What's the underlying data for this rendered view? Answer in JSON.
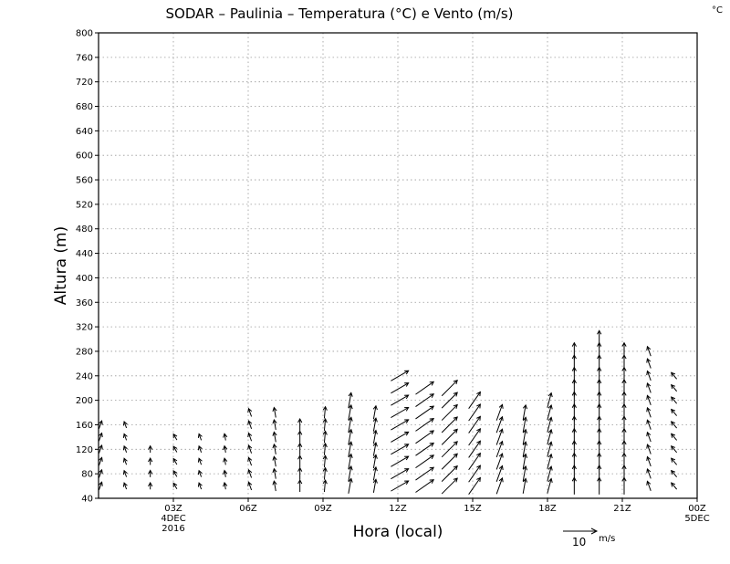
{
  "chart_data": {
    "type": "wind-profile",
    "title": "SODAR  –  Paulinia  –  Temperatura (°C) e Vento (m/s)",
    "corner_label": "°C",
    "xlabel": "Hora (local)",
    "ylabel": "Altura (m)",
    "ylim": [
      40,
      800
    ],
    "y_ticks": [
      40,
      80,
      120,
      160,
      200,
      240,
      280,
      320,
      360,
      400,
      440,
      480,
      520,
      560,
      600,
      640,
      680,
      720,
      760,
      800
    ],
    "xlim_hours": [
      0,
      24
    ],
    "x_ticks": [
      {
        "hour": 3,
        "label": "03Z",
        "sub1": "4DEC",
        "sub2": "2016"
      },
      {
        "hour": 6,
        "label": "06Z"
      },
      {
        "hour": 9,
        "label": "09Z"
      },
      {
        "hour": 12,
        "label": "12Z"
      },
      {
        "hour": 15,
        "label": "15Z"
      },
      {
        "hour": 18,
        "label": "18Z"
      },
      {
        "hour": 21,
        "label": "21Z"
      },
      {
        "hour": 24,
        "label": "00Z",
        "sub1": "5DEC"
      }
    ],
    "grid": true,
    "reference_vector": {
      "speed_value": "10",
      "unit": "m/s"
    },
    "wind_profiles": [
      {
        "hour": 0,
        "top": 160,
        "dir": 200,
        "speed": 2.5
      },
      {
        "hour": 1,
        "top": 160,
        "dir": 160,
        "speed": 2.0
      },
      {
        "hour": 2,
        "top": 120,
        "dir": 180,
        "speed": 2.0
      },
      {
        "hour": 3,
        "top": 140,
        "dir": 150,
        "speed": 2.0
      },
      {
        "hour": 4,
        "top": 140,
        "dir": 160,
        "speed": 2.0
      },
      {
        "hour": 5,
        "top": 140,
        "dir": 170,
        "speed": 2.0
      },
      {
        "hour": 6,
        "top": 180,
        "dir": 160,
        "speed": 2.5
      },
      {
        "hour": 7,
        "top": 180,
        "dir": 170,
        "speed": 3.0
      },
      {
        "hour": 8,
        "top": 160,
        "dir": 180,
        "speed": 3.5
      },
      {
        "hour": 9,
        "top": 180,
        "dir": 185,
        "speed": 3.5
      },
      {
        "hour": 10,
        "top": 200,
        "dir": 190,
        "speed": 4.5
      },
      {
        "hour": 11,
        "top": 180,
        "dir": 190,
        "speed": 4.0
      },
      {
        "hour": 12,
        "top": 240,
        "dir": 240,
        "speed": 6.0
      },
      {
        "hour": 13,
        "top": 220,
        "dir": 235,
        "speed": 6.5
      },
      {
        "hour": 14,
        "top": 220,
        "dir": 225,
        "speed": 6.5
      },
      {
        "hour": 15,
        "top": 200,
        "dir": 215,
        "speed": 6.0
      },
      {
        "hour": 16,
        "top": 180,
        "dir": 200,
        "speed": 5.0
      },
      {
        "hour": 17,
        "top": 180,
        "dir": 190,
        "speed": 4.5
      },
      {
        "hour": 18,
        "top": 200,
        "dir": 195,
        "speed": 4.5
      },
      {
        "hour": 19,
        "top": 280,
        "dir": 180,
        "speed": 5.0
      },
      {
        "hour": 20,
        "top": 300,
        "dir": 180,
        "speed": 5.0
      },
      {
        "hour": 21,
        "top": 280,
        "dir": 180,
        "speed": 5.0
      },
      {
        "hour": 22,
        "top": 280,
        "dir": 160,
        "speed": 3.0
      },
      {
        "hour": 23,
        "top": 240,
        "dir": 140,
        "speed": 2.5
      }
    ]
  }
}
